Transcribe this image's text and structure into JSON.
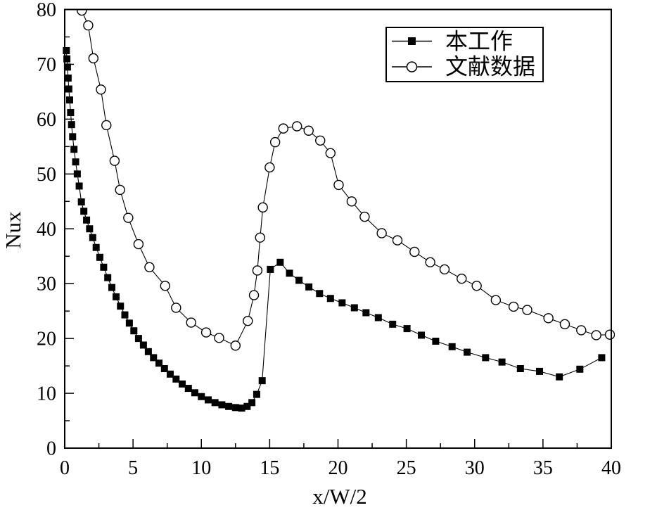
{
  "page": {
    "background": "#ffffff",
    "foreground": "#000000"
  },
  "chart_data": {
    "type": "line",
    "title": "",
    "xlabel": "x/W/2",
    "ylabel": "Nux",
    "xlim": [
      0,
      40
    ],
    "ylim": [
      0,
      80
    ],
    "xticks": [
      0,
      5,
      10,
      15,
      20,
      25,
      30,
      35,
      40
    ],
    "yticks": [
      0,
      10,
      20,
      30,
      40,
      50,
      60,
      70,
      80
    ],
    "x_minor_step": 2.5,
    "y_minor_step": 5,
    "grid": false,
    "legend": {
      "position": "top-right-inside",
      "border": true
    },
    "axis_color": "#000000",
    "series": [
      {
        "name": "本工作",
        "marker": "filled-square",
        "color": "#000000",
        "line": "solid",
        "points": [
          [
            0.12,
            72.5
          ],
          [
            0.16,
            71.0
          ],
          [
            0.2,
            69.5
          ],
          [
            0.25,
            67.5
          ],
          [
            0.3,
            65.5
          ],
          [
            0.36,
            63.5
          ],
          [
            0.43,
            61.2
          ],
          [
            0.5,
            59.0
          ],
          [
            0.58,
            56.8
          ],
          [
            0.68,
            54.5
          ],
          [
            0.8,
            52.2
          ],
          [
            0.92,
            50.0
          ],
          [
            1.06,
            47.8
          ],
          [
            1.22,
            44.9
          ],
          [
            1.4,
            43.2
          ],
          [
            1.6,
            41.6
          ],
          [
            1.82,
            40.0
          ],
          [
            2.05,
            38.4
          ],
          [
            2.3,
            36.6
          ],
          [
            2.57,
            34.8
          ],
          [
            2.85,
            33.0
          ],
          [
            3.15,
            31.1
          ],
          [
            3.45,
            29.3
          ],
          [
            3.76,
            27.6
          ],
          [
            4.08,
            25.9
          ],
          [
            4.4,
            24.3
          ],
          [
            4.73,
            22.8
          ],
          [
            5.06,
            21.4
          ],
          [
            5.4,
            20.0
          ],
          [
            5.76,
            18.8
          ],
          [
            6.12,
            17.6
          ],
          [
            6.5,
            16.5
          ],
          [
            6.9,
            15.5
          ],
          [
            7.3,
            14.5
          ],
          [
            7.72,
            13.5
          ],
          [
            8.15,
            12.6
          ],
          [
            8.6,
            11.7
          ],
          [
            9.05,
            10.9
          ],
          [
            9.52,
            10.1
          ],
          [
            10.0,
            9.4
          ],
          [
            10.5,
            8.8
          ],
          [
            11.0,
            8.3
          ],
          [
            11.5,
            7.9
          ],
          [
            12.0,
            7.6
          ],
          [
            12.5,
            7.4
          ],
          [
            12.95,
            7.3
          ],
          [
            13.35,
            7.6
          ],
          [
            13.7,
            8.3
          ],
          [
            14.05,
            9.8
          ],
          [
            14.45,
            12.3
          ],
          [
            15.05,
            32.6
          ],
          [
            15.77,
            33.9
          ],
          [
            16.45,
            31.9
          ],
          [
            17.15,
            30.6
          ],
          [
            17.87,
            29.4
          ],
          [
            18.65,
            28.2
          ],
          [
            19.45,
            27.3
          ],
          [
            20.3,
            26.5
          ],
          [
            21.2,
            25.6
          ],
          [
            22.05,
            24.7
          ],
          [
            22.95,
            23.8
          ],
          [
            24.0,
            22.6
          ],
          [
            25.05,
            21.8
          ],
          [
            26.1,
            20.6
          ],
          [
            27.15,
            19.5
          ],
          [
            28.35,
            18.5
          ],
          [
            29.45,
            17.5
          ],
          [
            30.8,
            16.5
          ],
          [
            32.0,
            15.7
          ],
          [
            33.35,
            14.5
          ],
          [
            34.75,
            14.0
          ],
          [
            36.2,
            13.0
          ],
          [
            37.7,
            14.4
          ],
          [
            39.3,
            16.5
          ]
        ]
      },
      {
        "name": "文献数据",
        "marker": "open-circle",
        "color": "#000000",
        "line": "solid",
        "points": [
          [
            1.25,
            79.8
          ],
          [
            1.72,
            77.1
          ],
          [
            2.1,
            71.1
          ],
          [
            2.65,
            65.4
          ],
          [
            3.05,
            58.9
          ],
          [
            3.65,
            52.4
          ],
          [
            4.05,
            47.1
          ],
          [
            4.65,
            42.0
          ],
          [
            5.4,
            37.2
          ],
          [
            6.2,
            33.0
          ],
          [
            7.35,
            29.6
          ],
          [
            8.15,
            25.6
          ],
          [
            9.25,
            22.9
          ],
          [
            10.35,
            21.1
          ],
          [
            11.3,
            20.1
          ],
          [
            12.5,
            18.7
          ],
          [
            13.4,
            23.2
          ],
          [
            13.85,
            27.9
          ],
          [
            14.1,
            32.4
          ],
          [
            14.3,
            38.4
          ],
          [
            14.5,
            43.9
          ],
          [
            15.0,
            51.2
          ],
          [
            15.4,
            55.8
          ],
          [
            16.0,
            58.3
          ],
          [
            17.0,
            58.7
          ],
          [
            17.85,
            57.9
          ],
          [
            18.7,
            56.1
          ],
          [
            19.45,
            53.8
          ],
          [
            20.05,
            48.0
          ],
          [
            21.0,
            45.0
          ],
          [
            21.95,
            42.2
          ],
          [
            23.2,
            39.2
          ],
          [
            24.35,
            37.9
          ],
          [
            25.6,
            35.8
          ],
          [
            26.75,
            33.9
          ],
          [
            27.8,
            32.6
          ],
          [
            29.05,
            30.9
          ],
          [
            30.15,
            29.6
          ],
          [
            31.55,
            27.0
          ],
          [
            32.85,
            25.8
          ],
          [
            33.85,
            25.2
          ],
          [
            35.4,
            23.7
          ],
          [
            36.6,
            22.6
          ],
          [
            37.8,
            21.5
          ],
          [
            38.9,
            20.6
          ],
          [
            39.9,
            20.7
          ]
        ]
      }
    ]
  }
}
